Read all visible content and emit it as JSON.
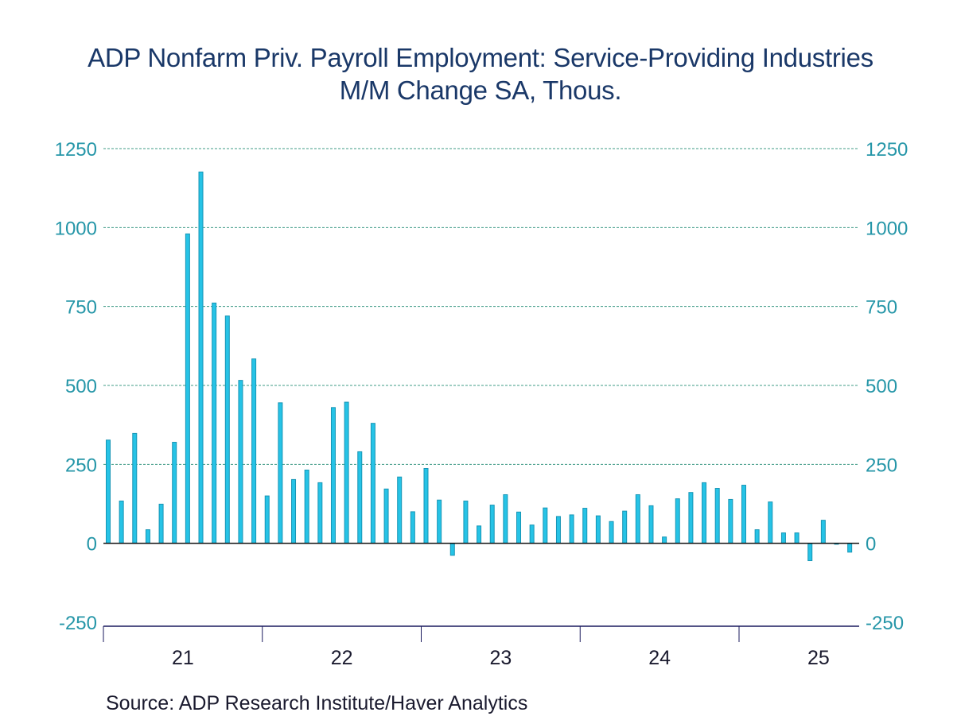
{
  "chart_data": {
    "type": "bar",
    "title": "ADP Nonfarm Priv. Payroll Employment: Service-Providing Industries",
    "subtitle": "M/M Change    SA, Thous.",
    "source": "Source:  ADP Research Institute/Haver Analytics",
    "xlabel": "",
    "ylabel": "",
    "ylim": [
      -250,
      1250
    ],
    "yticks": [
      1250,
      1000,
      750,
      500,
      250,
      0,
      -250
    ],
    "ytick_labels": [
      "1250",
      "1000",
      "750",
      "500",
      "250",
      "0",
      "-250"
    ],
    "y_axis_both_sides": true,
    "grid": true,
    "x_year_labels": [
      "21",
      "22",
      "23",
      "24",
      "25"
    ],
    "series_color": "#26c3e6",
    "categories": [
      "Jan 2021",
      "Feb 2021",
      "Mar 2021",
      "Apr 2021",
      "May 2021",
      "Jun 2021",
      "Jul 2021",
      "Aug 2021",
      "Sep 2021",
      "Oct 2021",
      "Nov 2021",
      "Dec 2021",
      "Jan 2022",
      "Feb 2022",
      "Mar 2022",
      "Apr 2022",
      "May 2022",
      "Jun 2022",
      "Jul 2022",
      "Aug 2022",
      "Sep 2022",
      "Oct 2022",
      "Nov 2022",
      "Dec 2022",
      "Jan 2023",
      "Feb 2023",
      "Mar 2023",
      "Apr 2023",
      "May 2023",
      "Jun 2023",
      "Jul 2023",
      "Aug 2023",
      "Sep 2023",
      "Oct 2023",
      "Nov 2023",
      "Dec 2023",
      "Jan 2024",
      "Feb 2024",
      "Mar 2024",
      "Apr 2024",
      "May 2024",
      "Jun 2024",
      "Jul 2024",
      "Aug 2024",
      "Sep 2024",
      "Oct 2024",
      "Nov 2024",
      "Dec 2024",
      "Jan 2025",
      "Feb 2025",
      "Mar 2025",
      "Apr 2025",
      "May 2025",
      "Jun 2025",
      "Jul 2025",
      "Aug 2025",
      "Sep 2025"
    ],
    "values": [
      327,
      134,
      348,
      43,
      124,
      320,
      980,
      1176,
      761,
      720,
      516,
      584,
      150,
      445,
      202,
      232,
      192,
      430,
      447,
      290,
      380,
      172,
      210,
      100,
      237,
      137,
      -38,
      134,
      55,
      121,
      154,
      99,
      58,
      112,
      85,
      90,
      111,
      87,
      69,
      102,
      154,
      119,
      20,
      141,
      161,
      192,
      174,
      139,
      184,
      43,
      131,
      33,
      33,
      -55,
      73,
      -3,
      -28
    ]
  }
}
